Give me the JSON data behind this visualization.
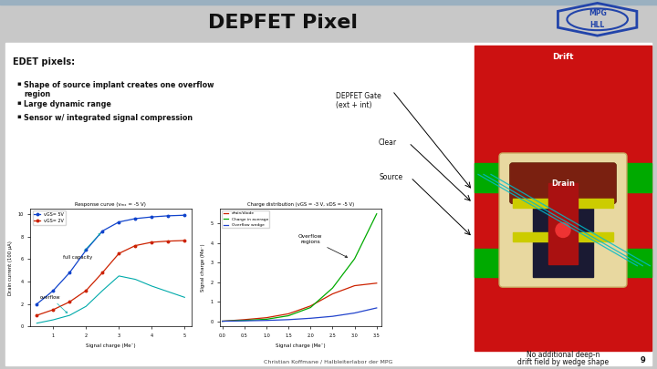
{
  "title": "DEPFET Pixel",
  "title_fontsize": 16,
  "title_fontweight": "bold",
  "edet_title": "EDET pixels:",
  "bullets": [
    "Shape of source implant creates one overflow\nregion",
    "Large dynamic range",
    "Sensor w/ integrated signal compression"
  ],
  "drift_label": "Drift",
  "drain_label": "Drain",
  "depfet_gate_label": "DEPFET Gate\n(ext + int)",
  "clear_label": "Clear",
  "source_label": "Source",
  "no_additional": "No additional deep-n",
  "drift_wedge": "drift field by wedge shape",
  "response_title": "Response curve (vₘₓ = -5 V)",
  "charge_title": "Charge distribution (vGS = -3 V, vDS = -5 V)",
  "full_capacity": "full capacity",
  "overflow_text": "overflow",
  "overflow_regions": "Overflow\nregions",
  "footer": "Christian Koffmane / Halbleiterlabor der MPG",
  "page_num": "9",
  "resp_legend1": "vGS= 5V",
  "resp_legend2": "vGS= 2V",
  "chg_legend1": "drain/diode",
  "chg_legend2": "Charge in average",
  "chg_legend3": "Overflow wedge",
  "resp_xlabel": "Signal charge (Me⁻)",
  "resp_ylabel": "Drain current (100 μA)",
  "chg_xlabel": "Signal charge (Me⁻)",
  "chg_ylabel": "Signal charge (Me⁻)",
  "colors": {
    "slide_bg": "#c8c8c8",
    "header_bg": "#ffffff",
    "content_bg": "#f5f5f5",
    "stripe_top": "#9ab0c0",
    "red_bg": "#cc1111",
    "green_side": "#00aa00",
    "drain_brown": "#7a2010",
    "yellow_strip": "#cccc00",
    "dark_center": "#1a1a33",
    "red_center": "#aa1111",
    "cream_border": "#e8d8a0",
    "white": "#ffffff",
    "black": "#000000",
    "cyan_line": "#00bbcc",
    "blue_plot": "#1144cc",
    "red_plot": "#cc2200",
    "green_plot": "#00aa00",
    "blue_plot2": "#2244cc"
  }
}
